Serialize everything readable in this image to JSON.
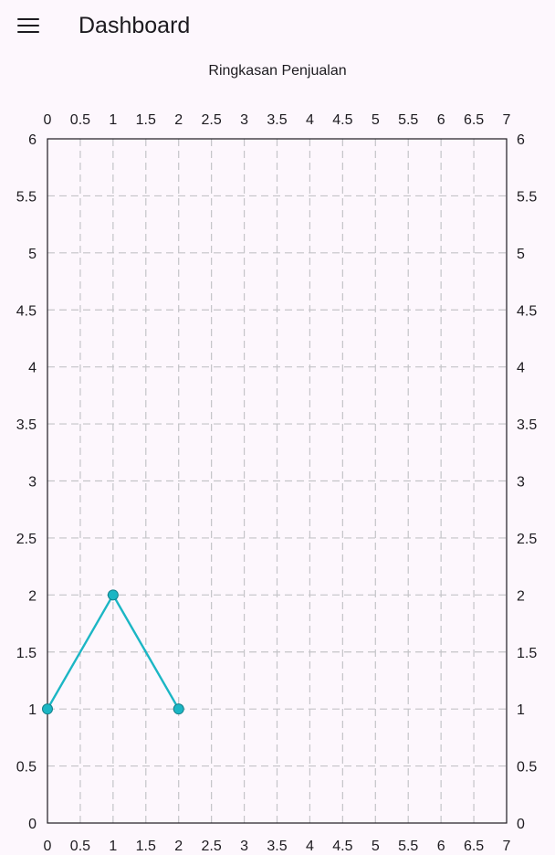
{
  "app_bar": {
    "title": "Dashboard",
    "menu_icon": "menu-icon"
  },
  "colors": {
    "background": "#fdf7fd",
    "series": "#1bb6c4",
    "grid": "#c4c4c8",
    "axis": "#1d1b20"
  },
  "chart_data": {
    "type": "line",
    "title": "Ringkasan Penjualan",
    "xlabel": "",
    "ylabel": "",
    "xlim": [
      0,
      7
    ],
    "ylim": [
      0,
      6
    ],
    "x_ticks": [
      "0",
      "0.5",
      "1",
      "1.5",
      "2",
      "2.5",
      "3",
      "3.5",
      "4",
      "4.5",
      "5",
      "5.5",
      "6",
      "6.5",
      "7"
    ],
    "y_ticks": [
      "0",
      "0.5",
      "1",
      "1.5",
      "2",
      "2.5",
      "3",
      "3.5",
      "4",
      "4.5",
      "5",
      "5.5",
      "6"
    ],
    "grid": true,
    "grid_style": "dashed",
    "x_axis_both_sides": true,
    "y_axis_both_sides": true,
    "series": [
      {
        "x": [
          0,
          1,
          2
        ],
        "values": [
          1,
          2,
          1
        ]
      }
    ]
  }
}
